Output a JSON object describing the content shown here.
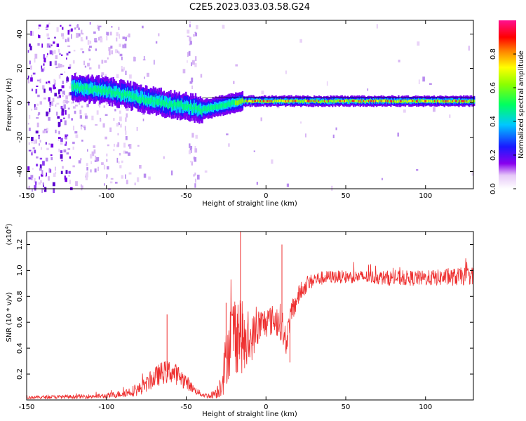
{
  "chart_data": [
    {
      "type": "heatmap",
      "title": "C2E5.2023.033.03.58.G24",
      "xlabel": "Height of straight line (km)",
      "ylabel": "Frequency (Hz)",
      "xlim": [
        -150,
        130
      ],
      "ylim": [
        -50,
        48
      ],
      "xticks": [
        -150,
        -100,
        -50,
        0,
        50,
        100
      ],
      "yticks": [
        -40,
        -20,
        0,
        20,
        40
      ],
      "colorbar": {
        "label": "Normalized spectral amplitude",
        "range": [
          0,
          1
        ],
        "ticks": [
          "0.0",
          "0.2",
          "0.4",
          "0.6",
          "0.8"
        ],
        "colormap": "white-purple-blue-cyan-green-yellow-red-magenta"
      },
      "ridge": {
        "x": [
          -122,
          -110,
          -100,
          -90,
          -80,
          -70,
          -60,
          -50,
          -45,
          -40,
          -35,
          -30,
          -25,
          -20,
          -15,
          -10,
          0,
          20,
          40,
          60,
          80,
          100,
          130
        ],
        "frequency": [
          9,
          8,
          7,
          5,
          3,
          1,
          -1,
          -2,
          -3,
          -4,
          -3,
          -2,
          -1,
          0,
          1,
          1,
          1,
          1,
          1,
          1,
          1,
          1,
          1
        ]
      },
      "colors": {
        "low": "#ead2f8",
        "mid": "#7a00f0",
        "high": "#ff2020"
      }
    },
    {
      "type": "line",
      "xlabel": "Height of straight line (km)",
      "ylabel": "SNR (10 * v/v)",
      "scale_label": "(x10",
      "scale_exponent": "4",
      "scale_suffix": ")",
      "xlim": [
        -150,
        130
      ],
      "ylim": [
        0,
        1.3
      ],
      "xticks": [
        -150,
        -100,
        -50,
        0,
        50,
        100
      ],
      "yticks": [
        "0.2",
        "0.4",
        "0.6",
        "0.8",
        "1.0",
        "1.2"
      ],
      "series_color": "#ee3030",
      "envelope": {
        "x": [
          -150,
          -120,
          -100,
          -90,
          -80,
          -75,
          -70,
          -65,
          -60,
          -55,
          -50,
          -45,
          -40,
          -35,
          -30,
          -27,
          -25,
          -23,
          -20,
          -18,
          -16,
          -14,
          -12,
          -10,
          -5,
          0,
          5,
          10,
          12,
          15,
          20,
          25,
          30,
          40,
          60,
          80,
          100,
          120,
          130
        ],
        "base": [
          0.02,
          0.025,
          0.03,
          0.05,
          0.08,
          0.12,
          0.17,
          0.21,
          0.22,
          0.19,
          0.14,
          0.08,
          0.04,
          0.03,
          0.07,
          0.18,
          0.32,
          0.45,
          0.52,
          0.55,
          0.52,
          0.45,
          0.4,
          0.45,
          0.56,
          0.6,
          0.62,
          0.6,
          0.4,
          0.62,
          0.8,
          0.88,
          0.93,
          0.95,
          0.95,
          0.94,
          0.94,
          0.95,
          0.96
        ],
        "amp": [
          0.012,
          0.015,
          0.02,
          0.03,
          0.05,
          0.06,
          0.08,
          0.09,
          0.09,
          0.08,
          0.06,
          0.03,
          0.02,
          0.02,
          0.06,
          0.15,
          0.22,
          0.28,
          0.32,
          0.35,
          0.32,
          0.25,
          0.2,
          0.18,
          0.15,
          0.12,
          0.12,
          0.15,
          0.1,
          0.1,
          0.08,
          0.06,
          0.06,
          0.05,
          0.05,
          0.06,
          0.06,
          0.07,
          0.07
        ]
      },
      "peaks": [
        {
          "x": -62,
          "y": 0.66
        },
        {
          "x": -25,
          "y": 0.75
        },
        {
          "x": -16,
          "y": 1.3
        },
        {
          "x": 10,
          "y": 1.2
        },
        {
          "x": 15,
          "y": 0.29
        }
      ]
    }
  ]
}
